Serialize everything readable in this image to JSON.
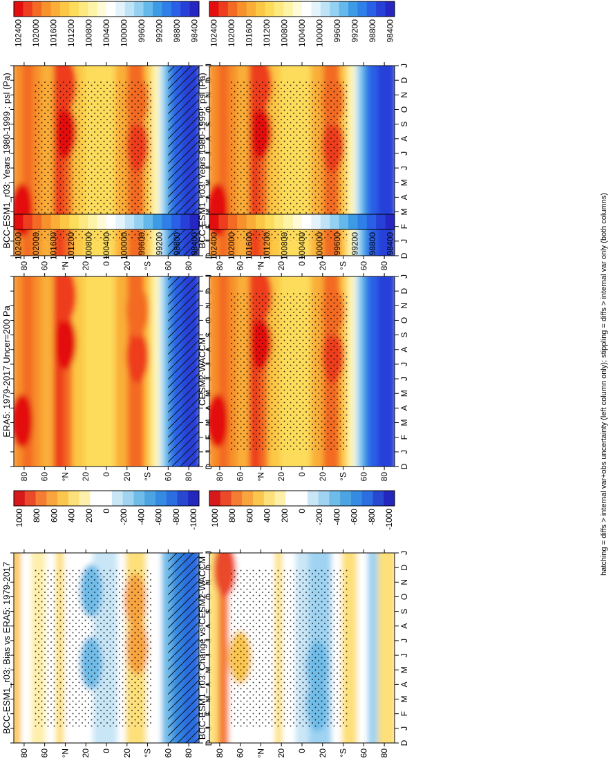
{
  "footer_note": "hatching = diffs > internal var+obs uncertainty (left column only); stippling = diffs > internal var only (both columns)",
  "months": [
    "D",
    "J",
    "F",
    "M",
    "A",
    "M",
    "J",
    "J",
    "A",
    "S",
    "O",
    "N",
    "D",
    "J"
  ],
  "lat_ticks": [
    "80",
    "60",
    "°N",
    "20",
    "0",
    "20",
    "°S",
    "60",
    "80"
  ],
  "colorbars": {
    "psl": [
      "102400",
      "102000",
      "101600",
      "101200",
      "100800",
      "100400",
      "100000",
      "99600",
      "99200",
      "98800",
      "98400"
    ],
    "diff": [
      "1000",
      "800",
      "600",
      "400",
      "200",
      "0",
      "-200",
      "-400",
      "-600",
      "-800",
      "-1000"
    ]
  },
  "colors": {
    "psl_scale": [
      "#e30f0f",
      "#ee3c1f",
      "#f36a24",
      "#f7912c",
      "#faae37",
      "#fcc744",
      "#fddc5b",
      "#fde97f",
      "#fef4a8",
      "#fefbd6",
      "#ffffff",
      "#e4f3fb",
      "#bfe3f6",
      "#93d0f1",
      "#64b8ea",
      "#3d9be6",
      "#2f7fe9",
      "#2a60e6",
      "#2740d8",
      "#2626c2"
    ],
    "diff_scale": [
      "#d7191c",
      "#ea4a2a",
      "#f47c33",
      "#f8a53f",
      "#fbc64e",
      "#fde07a",
      "#feefaa",
      "#ffffff",
      "#ffffff",
      "#c9e6f7",
      "#9fd3f1",
      "#70bce9",
      "#4da4e3",
      "#358ae2",
      "#2c6de0",
      "#2848d2",
      "#2427bd"
    ]
  },
  "chart_data": [
    {
      "id": "p1",
      "type": "heatmap",
      "title": "BCC-ESM1_r03: Years 1980-1999 : psl (Pa)",
      "x": "month",
      "y": "latitude",
      "ylim": [
        -90,
        90
      ],
      "colorbar": "psl",
      "hatching": true,
      "stippling": true
    },
    {
      "id": "p2",
      "type": "heatmap",
      "title": "BCC-ESM1_r03: Years 1980-1999 : psl (Pa)",
      "x": "month",
      "y": "latitude",
      "ylim": [
        -90,
        90
      ],
      "colorbar": "psl",
      "hatching": false,
      "stippling": true
    },
    {
      "id": "p3",
      "type": "heatmap",
      "title": "ERA5: 1979-2017 Uncer=200 Pa",
      "x": "month",
      "y": "latitude",
      "ylim": [
        -90,
        90
      ],
      "colorbar": "psl",
      "hatching": true,
      "stippling": false
    },
    {
      "id": "p4",
      "type": "heatmap",
      "title": "CESM2-WACCM",
      "x": "month",
      "y": "latitude",
      "ylim": [
        -90,
        90
      ],
      "colorbar": "psl",
      "hatching": false,
      "stippling": true
    },
    {
      "id": "p5",
      "type": "heatmap",
      "title": "BCC-ESM1_r03: Bias vs ERA5: 1979-2017",
      "x": "month",
      "y": "latitude",
      "ylim": [
        -90,
        90
      ],
      "colorbar": "diff",
      "hatching": true,
      "stippling": true
    },
    {
      "id": "p6",
      "type": "heatmap",
      "title": "BCC-ESM1_r03: Change vs CESM2-WACCM",
      "x": "month",
      "y": "latitude",
      "ylim": [
        -90,
        90
      ],
      "colorbar": "diff",
      "hatching": false,
      "stippling": true
    }
  ]
}
